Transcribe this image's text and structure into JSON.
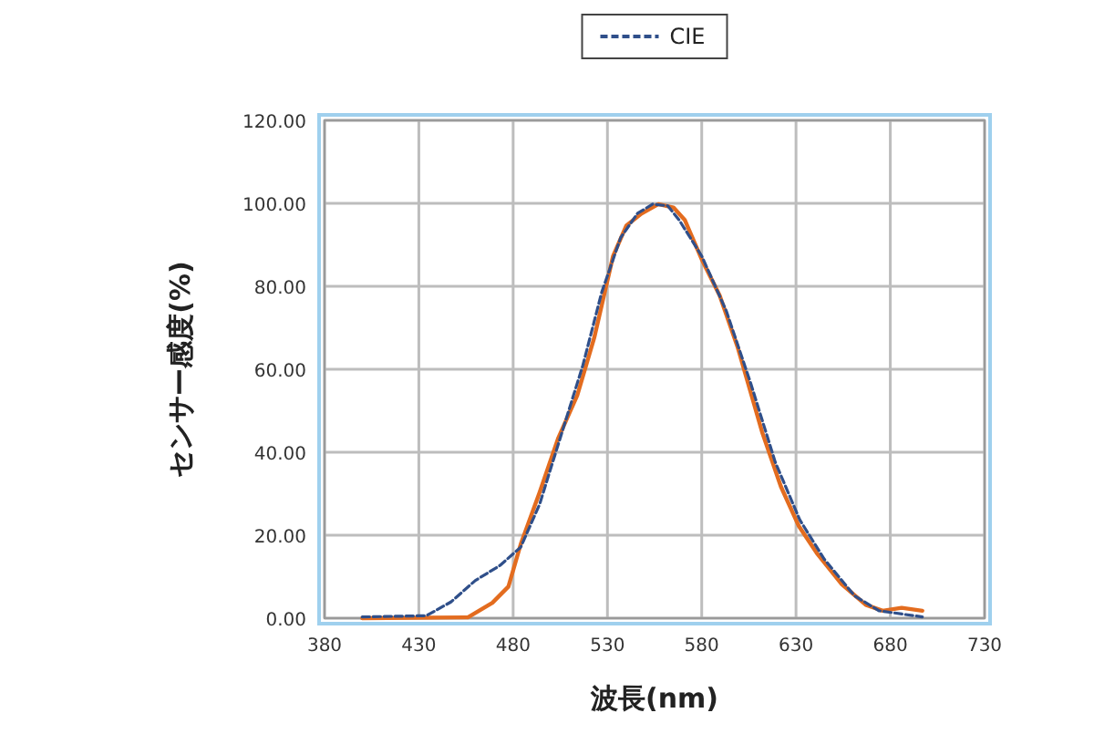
{
  "chart_data": {
    "type": "line",
    "xlabel": "波長(nm)",
    "ylabel": "センサー感度(%)",
    "xlim": [
      380,
      730
    ],
    "xticks": [
      380,
      430,
      480,
      530,
      580,
      630,
      680,
      730
    ],
    "ylim": [
      0,
      120
    ],
    "yticks": [
      {
        "value": 0,
        "label": "0.00"
      },
      {
        "value": 20,
        "label": "20.00"
      },
      {
        "value": 40,
        "label": "40.00"
      },
      {
        "value": 60,
        "label": "60.00"
      },
      {
        "value": 80,
        "label": "80.00"
      },
      {
        "value": 100,
        "label": "100.00"
      },
      {
        "value": 120,
        "label": "120.00"
      }
    ],
    "grid": true,
    "legend": "top",
    "series": [
      {
        "color": "#e36c1f",
        "line_style": "solid",
        "x": [
          400,
          456,
          469,
          477.5,
          484,
          494,
          504,
          514,
          523,
          533,
          540,
          548,
          557,
          565,
          571,
          580,
          589.5,
          599,
          612,
          622,
          631.5,
          641,
          654,
          667,
          676,
          686,
          697
        ],
        "values": [
          0,
          0.2,
          3.7,
          7.6,
          17.8,
          30.3,
          43.5,
          53.7,
          67.6,
          87.3,
          94.6,
          97.5,
          99.8,
          99,
          96,
          86.5,
          77.8,
          65.4,
          44.9,
          31.7,
          22.2,
          15.7,
          8.3,
          3.2,
          1.8,
          2.5,
          1.8
        ]
      },
      {
        "name": "CIE",
        "color": "#2f4f8a",
        "line_style": "dashed",
        "x": [
          400,
          434,
          447,
          460,
          473,
          484,
          494,
          507,
          517,
          527,
          537,
          546,
          554,
          562,
          568,
          580,
          593,
          606,
          619,
          632,
          645,
          661,
          674,
          697
        ],
        "values": [
          0.3,
          0.6,
          3.9,
          9.1,
          12.7,
          17.1,
          27.4,
          46.4,
          61,
          78.6,
          91.7,
          97.6,
          99.8,
          99.4,
          96,
          87.3,
          74.1,
          56.6,
          37.6,
          23.7,
          14.2,
          5.4,
          1.8,
          0.3
        ]
      }
    ]
  }
}
